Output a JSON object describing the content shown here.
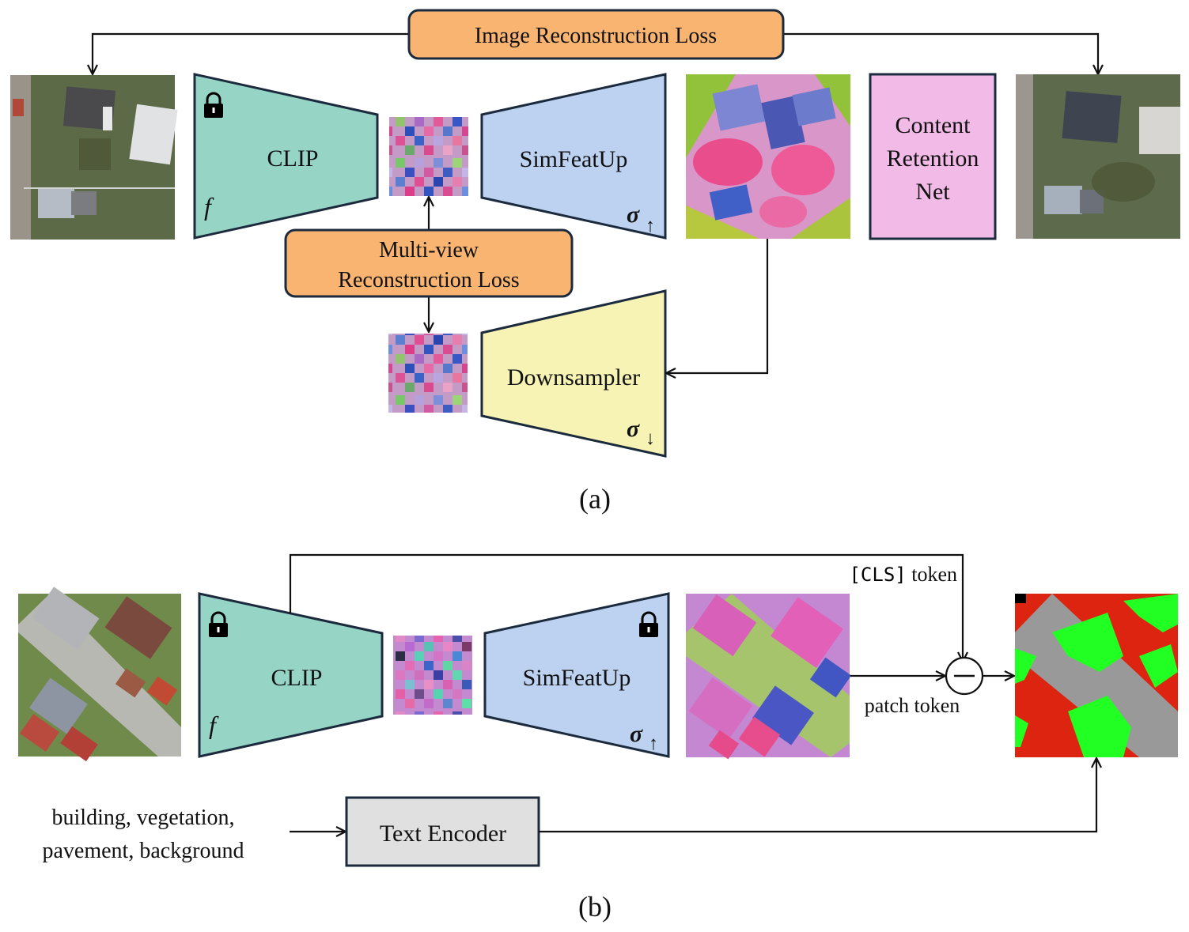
{
  "panel_a": {
    "caption": "(a)",
    "image_loss_label": "Image Reconstruction Loss",
    "clip_label": "CLIP",
    "clip_fn": "f",
    "simfeatup_label": "SimFeatUp",
    "sigma_up": "σ",
    "up_arrow": "↑",
    "multiview_loss_line1": "Multi-view",
    "multiview_loss_line2": "Reconstruction Loss",
    "downsampler_label": "Downsampler",
    "sigma_down": "σ",
    "down_arrow": "↓",
    "crn_line1": "Content",
    "crn_line2": "Retention",
    "crn_line3": "Net"
  },
  "panel_b": {
    "caption": "(b)",
    "clip_label": "CLIP",
    "clip_fn": "f",
    "simfeatup_label": "SimFeatUp",
    "sigma_up": "σ",
    "up_arrow": "↑",
    "cls_token_code": "[CLS]",
    "cls_token_word": " token",
    "patch_token_label": "patch token",
    "text_encoder_label": "Text Encoder",
    "text_line1": "building, vegetation,",
    "text_line2": "pavement, background"
  },
  "colors": {
    "clip": "#96d5c6",
    "simfeatup": "#bcd2f0",
    "downsampler": "#f6f3b4",
    "crn": "#f2bae6",
    "loss": "#f8b470",
    "text_encoder": "#e0e0e0",
    "stroke": "#1b2a3d",
    "seg_building": "#dd2410",
    "seg_vegetation": "#22ff22",
    "seg_pavement": "#999999"
  }
}
